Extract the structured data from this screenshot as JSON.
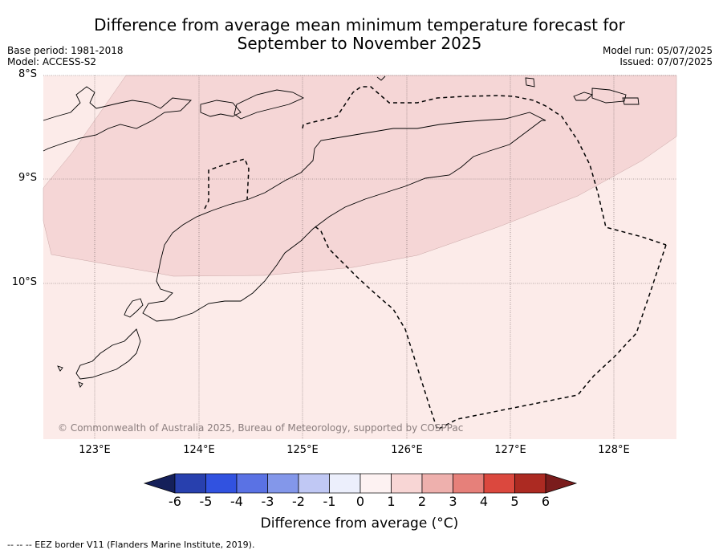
{
  "header": {
    "title_line1": "Difference from average mean minimum temperature forecast for",
    "title_line2": "September to November 2025",
    "base_period": "Base period: 1981-2018",
    "model": "Model: ACCESS-S2",
    "model_run": "Model run: 05/07/2025",
    "issued": "Issued: 07/07/2025"
  },
  "map": {
    "lat_labels": [
      "8°S",
      "9°S",
      "10°S"
    ],
    "lon_labels": [
      "123°E",
      "124°E",
      "125°E",
      "126°E",
      "127°E",
      "128°E"
    ],
    "lon_range": [
      122.57,
      128.6
    ],
    "lat_range": [
      -8.0,
      -11.5
    ],
    "fill_colors": {
      "range_0_1": "#fcebe9",
      "range_1_2": "#f5d6d6"
    },
    "copyright": "© Commonwealth of Australia 2025, Bureau of Meteorology, supported by COSPPac"
  },
  "colorbar": {
    "ticks": [
      "-6",
      "-5",
      "-4",
      "-3",
      "-2",
      "-1",
      "0",
      "1",
      "2",
      "3",
      "4",
      "5",
      "6"
    ],
    "colors": [
      "#15205a",
      "#2840ae",
      "#3152e0",
      "#5a72e4",
      "#8397ea",
      "#c0c8f4",
      "#eceffc",
      "#fdf2f2",
      "#f8d6d5",
      "#eeb0ad",
      "#e6807a",
      "#db483e",
      "#ac2a22",
      "#7a1c1c"
    ],
    "label": "Difference from average (°C)"
  },
  "footer": {
    "eez_note": "--  --  -- EEZ border V11 (Flanders Marine Institute, 2019)."
  }
}
